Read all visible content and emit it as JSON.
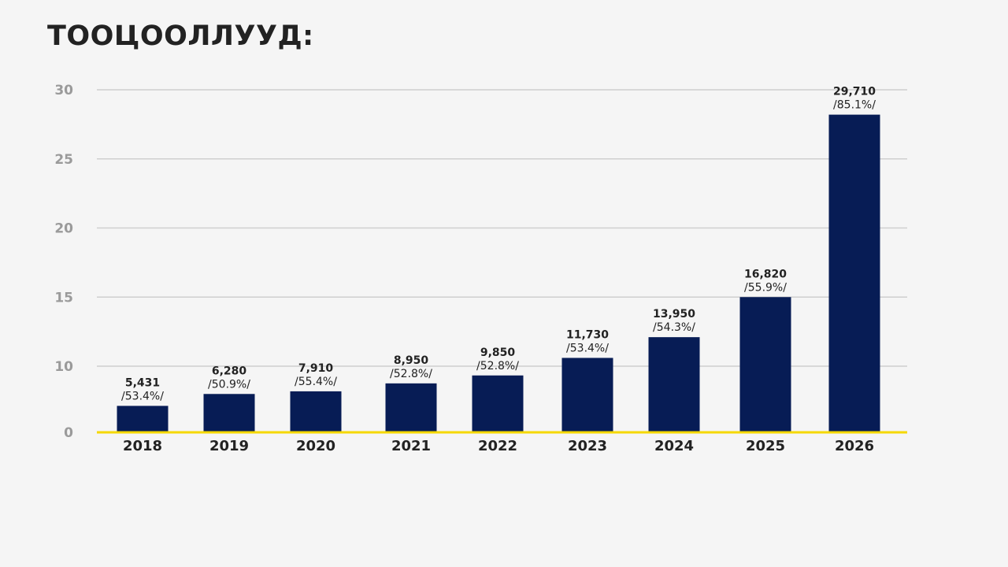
{
  "chart_data": {
    "type": "bar",
    "title": "ТООЦООЛЛУУД:",
    "xlabel": "",
    "ylabel": "",
    "ylim": [
      0,
      30
    ],
    "yticks": [
      0,
      10,
      15,
      20,
      25,
      30
    ],
    "grid": true,
    "colors": {
      "bar": "#071c55",
      "baseline": "#f5d800",
      "grid": "#cfcfcf"
    },
    "categories": [
      "2018",
      "2019",
      "2020",
      "2021",
      "2022",
      "2023",
      "2024",
      "2025",
      "2026"
    ],
    "values": [
      4.0,
      5.8,
      6.2,
      7.4,
      8.6,
      10.6,
      12.1,
      15.0,
      28.2
    ],
    "value_labels": [
      "5,431",
      "6,280",
      "7,910",
      "8,950",
      "9,850",
      "11,730",
      "13,950",
      "16,820",
      "29,710"
    ],
    "percent_labels": [
      "/53.4%/",
      "/50.9%/",
      "/55.4%/",
      "/52.8%/",
      "/52.8%/",
      "/53.4%/",
      "/54.3%/",
      "/55.9%/",
      "/85.1%/"
    ]
  }
}
